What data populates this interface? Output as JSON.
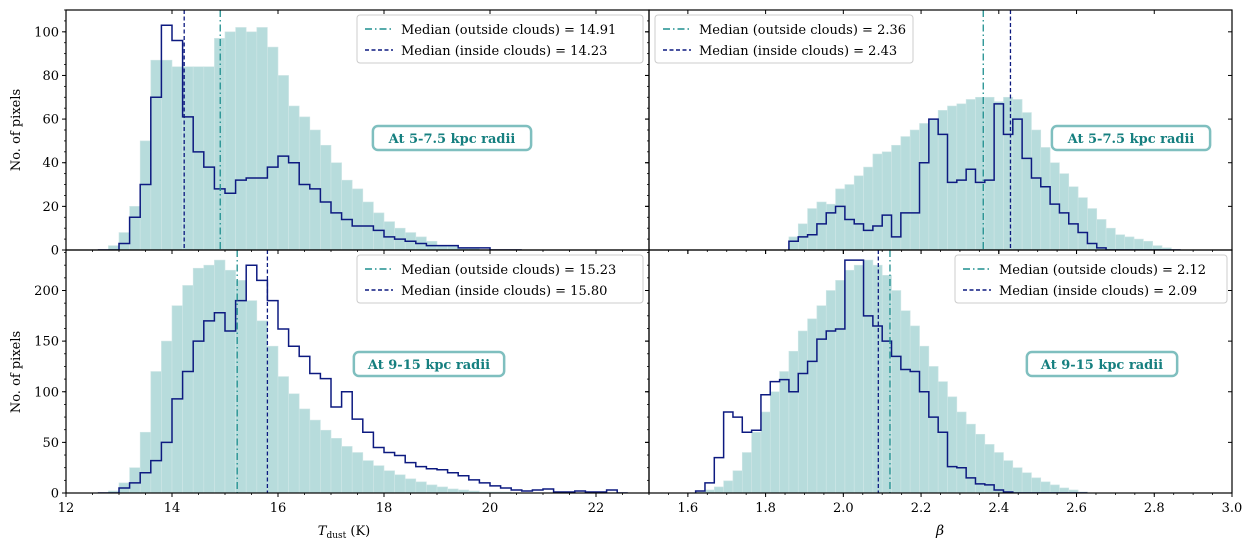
{
  "figure": {
    "ylabel": "No. of pixels",
    "xlabel_left_main": "T",
    "xlabel_left_sub": "dust",
    "xlabel_left_unit": " (K)",
    "xlabel_right": "β"
  },
  "colors": {
    "hist_fill": "#b7dcdc",
    "hist_edge": "#cfe6e6",
    "inside_line": "#0d1a80",
    "outside_median": "#1f8f8f",
    "annot_text": "#157f7f",
    "annot_border": "#7fbfbf"
  },
  "chart_data": [
    {
      "id": "tl",
      "type": "histogram",
      "annotation": "At 5-7.5 kpc radii",
      "xlim": [
        12,
        23
      ],
      "ylim": [
        0,
        110
      ],
      "yticks": [
        0,
        20,
        40,
        60,
        80,
        100
      ],
      "bin_start": 12.6,
      "bin_width": 0.2,
      "outside_counts": [
        0,
        2,
        8,
        20,
        50,
        87,
        87,
        84,
        84,
        84,
        84,
        97,
        100,
        102,
        100,
        102,
        93,
        80,
        66,
        61,
        55,
        48,
        40,
        32,
        28,
        22,
        17,
        13,
        10,
        8,
        6,
        4,
        2,
        2,
        1,
        1,
        0,
        0,
        0,
        0
      ],
      "inside_counts": [
        0,
        0,
        3,
        15,
        30,
        70,
        103,
        96,
        61,
        45,
        38,
        28,
        26,
        32,
        33,
        33,
        38,
        43,
        40,
        30,
        28,
        22,
        17,
        14,
        11,
        11,
        9,
        6,
        5,
        4,
        3,
        2,
        2,
        2,
        1,
        1,
        1,
        0,
        0,
        0
      ],
      "median_outside": 14.91,
      "median_inside": 14.23,
      "legend": [
        "Median (outside clouds) = 14.91",
        "Median (inside clouds) = 14.23"
      ]
    },
    {
      "id": "tr",
      "type": "histogram",
      "annotation": "At 5-7.5 kpc radii",
      "xlim": [
        1.5,
        3.0
      ],
      "ylim": [
        0,
        110
      ],
      "yticks": [
        0,
        20,
        40,
        60,
        80,
        100
      ],
      "bin_start": 1.86,
      "bin_width": 0.024,
      "outside_counts": [
        6,
        12,
        19,
        22,
        21,
        28,
        30,
        34,
        38,
        44,
        45,
        48,
        52,
        55,
        58,
        60,
        64,
        66,
        67,
        69,
        70,
        70,
        68,
        70,
        69,
        63,
        55,
        47,
        40,
        35,
        29,
        24,
        19,
        14,
        10,
        7,
        6,
        5,
        4,
        2,
        1,
        0
      ],
      "inside_counts": [
        4,
        6,
        7,
        12,
        17,
        20,
        14,
        12,
        9,
        11,
        16,
        6,
        17,
        17,
        40,
        60,
        53,
        31,
        32,
        37,
        31,
        32,
        67,
        53,
        60,
        42,
        33,
        29,
        21,
        17,
        12,
        8,
        3,
        1,
        0,
        0,
        0,
        0,
        0,
        0,
        0,
        0
      ],
      "median_outside": 2.36,
      "median_inside": 2.43,
      "legend": [
        "Median (outside clouds) = 2.36",
        "Median (inside clouds) = 2.43"
      ]
    },
    {
      "id": "bl",
      "type": "histogram",
      "annotation": "At 9-15 kpc radii",
      "xlim": [
        12,
        23
      ],
      "ylim": [
        0,
        240
      ],
      "yticks": [
        0,
        50,
        100,
        150,
        200
      ],
      "bin_start": 12.6,
      "bin_width": 0.2,
      "outside_counts": [
        0,
        2,
        10,
        25,
        60,
        120,
        150,
        185,
        205,
        222,
        225,
        230,
        220,
        210,
        190,
        170,
        145,
        115,
        98,
        83,
        72,
        62,
        54,
        46,
        40,
        32,
        27,
        22,
        18,
        14,
        11,
        8,
        6,
        4,
        3,
        2,
        1,
        1,
        1,
        0,
        0,
        0,
        0,
        0,
        0,
        0,
        0,
        0,
        0,
        0
      ],
      "inside_counts": [
        0,
        0,
        5,
        10,
        20,
        32,
        50,
        93,
        120,
        150,
        170,
        178,
        160,
        190,
        225,
        210,
        190,
        162,
        145,
        135,
        118,
        113,
        85,
        100,
        73,
        60,
        45,
        40,
        37,
        30,
        26,
        24,
        23,
        20,
        17,
        13,
        10,
        7,
        5,
        3,
        2,
        3,
        4,
        1,
        1,
        2,
        1,
        1,
        3,
        0
      ],
      "median_outside": 15.23,
      "median_inside": 15.8,
      "legend": [
        "Median (outside clouds) = 15.23",
        "Median (inside clouds) = 15.80"
      ]
    },
    {
      "id": "br",
      "type": "histogram",
      "annotation": "At 9-15 kpc radii",
      "xlim": [
        1.5,
        3.0
      ],
      "ylim": [
        0,
        240
      ],
      "yticks": [
        0,
        50,
        100,
        150,
        200
      ],
      "bin_start": 1.62,
      "bin_width": 0.024,
      "outside_counts": [
        1,
        3,
        6,
        12,
        22,
        40,
        60,
        80,
        100,
        120,
        140,
        160,
        172,
        185,
        200,
        210,
        220,
        225,
        230,
        225,
        215,
        200,
        180,
        165,
        145,
        125,
        110,
        95,
        80,
        68,
        58,
        48,
        40,
        32,
        25,
        20,
        15,
        11,
        8,
        5,
        3,
        1
      ],
      "inside_counts": [
        2,
        10,
        35,
        80,
        75,
        60,
        62,
        97,
        110,
        112,
        100,
        118,
        130,
        152,
        160,
        162,
        230,
        230,
        175,
        165,
        150,
        135,
        122,
        120,
        100,
        75,
        60,
        26,
        25,
        15,
        9,
        8,
        3,
        1,
        0,
        0,
        0,
        0,
        0,
        0,
        0,
        0
      ],
      "median_outside": 2.12,
      "median_inside": 2.09,
      "legend": [
        "Median (outside clouds) = 2.12",
        "Median (inside clouds) = 2.09"
      ]
    }
  ],
  "xaxis_left": {
    "ticks": [
      "12",
      "14",
      "16",
      "18",
      "20",
      "22"
    ],
    "values": [
      12,
      14,
      16,
      18,
      20,
      22
    ]
  },
  "xaxis_right": {
    "ticks": [
      "1.6",
      "1.8",
      "2.0",
      "2.2",
      "2.4",
      "2.6",
      "2.8",
      "3.0"
    ],
    "values": [
      1.6,
      1.8,
      2.0,
      2.2,
      2.4,
      2.6,
      2.8,
      3.0
    ]
  }
}
